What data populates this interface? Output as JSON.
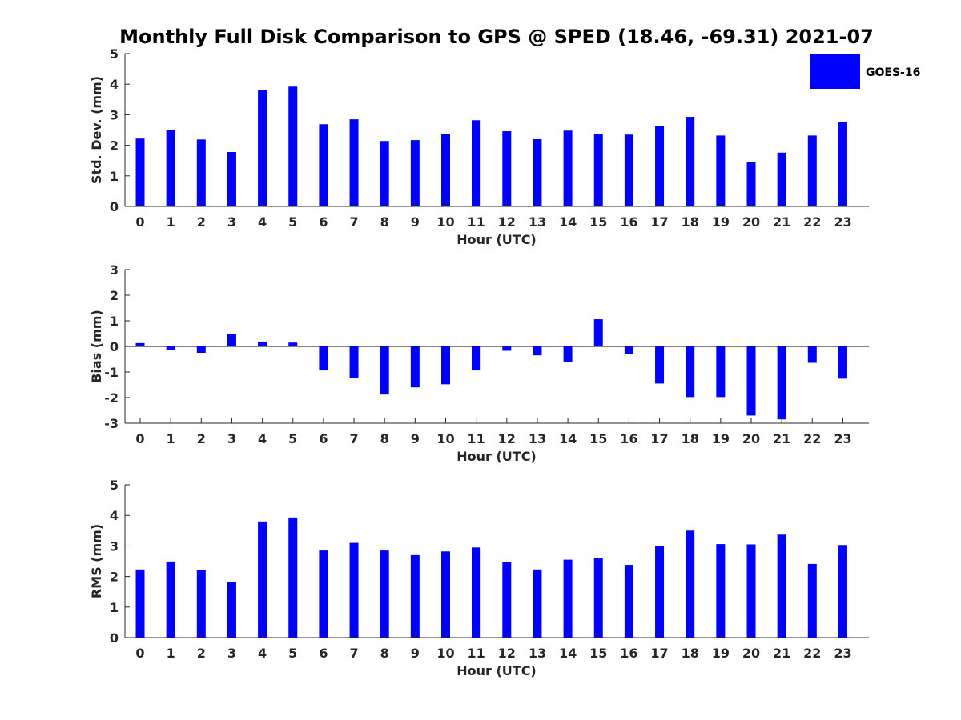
{
  "figure": {
    "title": "Monthly Full Disk Comparison to GPS @ SPED (18.46, -69.31) 2021-07",
    "legend": {
      "label": "GOES-16",
      "color": "#0000ff"
    }
  },
  "chart_data": [
    {
      "type": "bar",
      "name": "std-dev",
      "xlabel": "Hour (UTC)",
      "ylabel": "Std. Dev. (mm)",
      "categories": [
        "0",
        "1",
        "2",
        "3",
        "4",
        "5",
        "6",
        "7",
        "8",
        "9",
        "10",
        "11",
        "12",
        "13",
        "14",
        "15",
        "16",
        "17",
        "18",
        "19",
        "20",
        "21",
        "22",
        "23"
      ],
      "values": [
        2.22,
        2.49,
        2.19,
        1.78,
        3.81,
        3.92,
        2.69,
        2.85,
        2.14,
        2.17,
        2.38,
        2.82,
        2.46,
        2.2,
        2.48,
        2.38,
        2.35,
        2.64,
        2.93,
        2.32,
        1.44,
        1.76,
        2.32,
        2.77
      ],
      "ylim": [
        0,
        5
      ],
      "yticks": [
        "0",
        "1",
        "2",
        "3",
        "4",
        "5"
      ],
      "color": "#0000ff",
      "legend": "top-right",
      "grid": false
    },
    {
      "type": "bar",
      "name": "bias",
      "xlabel": "Hour (UTC)",
      "ylabel": "Bias (mm)",
      "categories": [
        "0",
        "1",
        "2",
        "3",
        "4",
        "5",
        "6",
        "7",
        "8",
        "9",
        "10",
        "11",
        "12",
        "13",
        "14",
        "15",
        "16",
        "17",
        "18",
        "19",
        "20",
        "21",
        "22",
        "23"
      ],
      "values": [
        0.13,
        -0.14,
        -0.25,
        0.47,
        0.19,
        0.15,
        -0.94,
        -1.22,
        -1.88,
        -1.6,
        -1.48,
        -0.94,
        -0.17,
        -0.35,
        -0.61,
        1.06,
        -0.31,
        -1.45,
        -1.98,
        -1.98,
        -2.7,
        -2.85,
        -0.64,
        -1.26
      ],
      "ylim": [
        -3,
        3
      ],
      "yticks": [
        "-3",
        "-2",
        "-1",
        "0",
        "1",
        "2",
        "3"
      ],
      "color": "#0000ff",
      "grid": false
    },
    {
      "type": "bar",
      "name": "rms",
      "xlabel": "Hour (UTC)",
      "ylabel": "RMS (mm)",
      "categories": [
        "0",
        "1",
        "2",
        "3",
        "4",
        "5",
        "6",
        "7",
        "8",
        "9",
        "10",
        "11",
        "12",
        "13",
        "14",
        "15",
        "16",
        "17",
        "18",
        "19",
        "20",
        "21",
        "22",
        "23"
      ],
      "values": [
        2.23,
        2.49,
        2.2,
        1.81,
        3.8,
        3.93,
        2.85,
        3.1,
        2.85,
        2.7,
        2.82,
        2.95,
        2.46,
        2.23,
        2.55,
        2.6,
        2.38,
        3.01,
        3.5,
        3.06,
        3.05,
        3.37,
        2.41,
        3.03
      ],
      "ylim": [
        0,
        5
      ],
      "yticks": [
        "0",
        "1",
        "2",
        "3",
        "4",
        "5"
      ],
      "color": "#0000ff",
      "grid": false
    }
  ]
}
